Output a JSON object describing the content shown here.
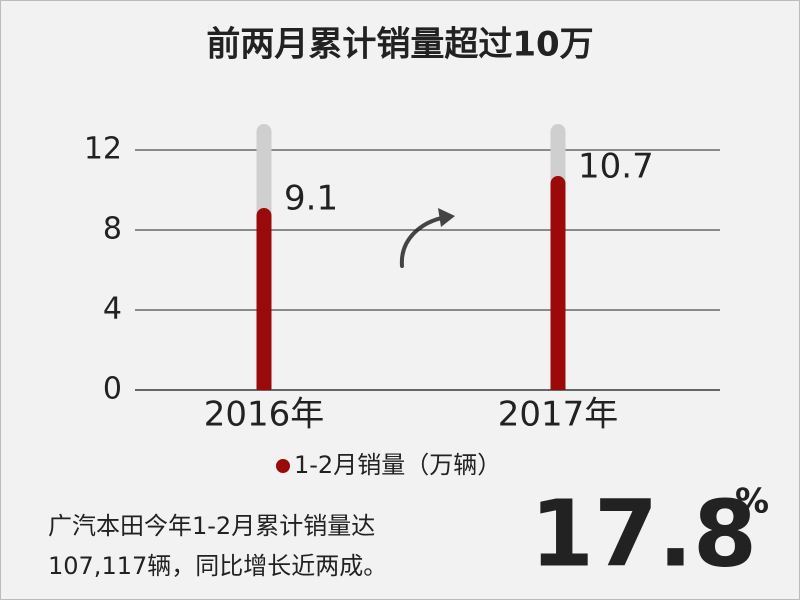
{
  "chart_data": {
    "type": "bar",
    "title": "前两月累计销量超过10万",
    "categories": [
      "2016年",
      "2017年"
    ],
    "series": [
      {
        "name": "1-2月销量（万辆）",
        "color": "#9b0a0a",
        "values": [
          9.1,
          10.7
        ]
      }
    ],
    "ylim": [
      0,
      13
    ],
    "yticks": [
      0,
      4,
      8,
      12
    ],
    "grid": true,
    "legend": "bottom",
    "annotation_lines": [
      "广汽本田今年1-2月累计销量达",
      "107,117辆，同比增长近两成。"
    ],
    "highlight": "17.8",
    "highlight_unit": "%"
  }
}
